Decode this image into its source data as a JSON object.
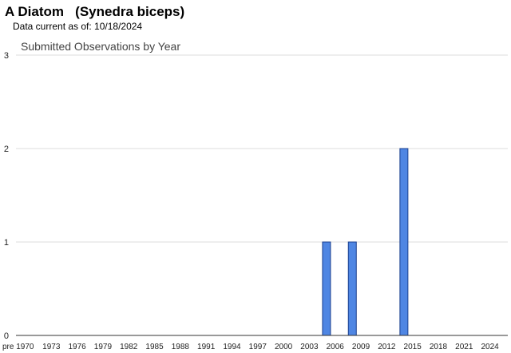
{
  "header": {
    "title": "A Diatom   (Synedra biceps)",
    "data_current": "Data current as of: 10/18/2024"
  },
  "colors": {
    "bar_fill": "#4f86e3",
    "bar_stroke": "#1a3f8f",
    "grid": "#dddddd"
  },
  "chart_data": {
    "type": "bar",
    "title": "Submitted Observations by Year",
    "xlabel": "",
    "ylabel": "",
    "ylim": [
      0,
      3
    ],
    "yticks": [
      0,
      1,
      2,
      3
    ],
    "grid": true,
    "xtick_labels": [
      "pre 1970",
      "1973",
      "1976",
      "1979",
      "1982",
      "1985",
      "1988",
      "1991",
      "1994",
      "1997",
      "2000",
      "2003",
      "2006",
      "2009",
      "2012",
      "2015",
      "2018",
      "2021",
      "2024"
    ],
    "categories": [
      "2005",
      "2008",
      "2014"
    ],
    "values": [
      1,
      1,
      2
    ]
  }
}
